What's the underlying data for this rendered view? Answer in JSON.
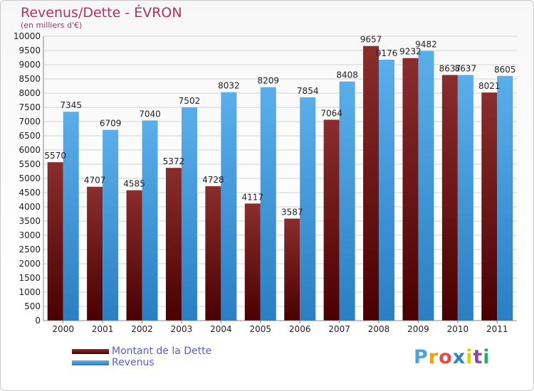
{
  "header": {
    "title": "Revenus/Dette - ÉVRON",
    "subtitle": "(en milliers d'€)"
  },
  "chart_data": {
    "type": "bar",
    "categories": [
      "2000",
      "2001",
      "2002",
      "2003",
      "2004",
      "2005",
      "2006",
      "2007",
      "2008",
      "2009",
      "2010",
      "2011"
    ],
    "series": [
      {
        "name": "Montant de la Dette",
        "values": [
          5570,
          4707,
          4585,
          5372,
          4728,
          4117,
          3587,
          7064,
          9657,
          9232,
          8637,
          8021
        ],
        "labels": [
          "5570",
          "4707",
          "4585",
          "5372",
          "4728",
          "4117",
          "3587",
          "7064",
          "9657",
          "9232",
          "8637",
          "8021"
        ],
        "color": "#7a1a1a"
      },
      {
        "name": "Revenus",
        "values": [
          7345,
          6709,
          7040,
          7502,
          8032,
          8209,
          7854,
          8408,
          9176,
          9482,
          8637,
          8605
        ],
        "labels": [
          "7345",
          "6709",
          "7040",
          "7502",
          "8032",
          "8209",
          "7854",
          "8408",
          "9176",
          "9482",
          "8637",
          "8605"
        ],
        "color": "#4fa3e3"
      }
    ],
    "ylim": [
      0,
      10000
    ],
    "ytick_step": 500,
    "grid": true,
    "legend_position": "bottom-left"
  },
  "logo": {
    "letters": [
      "P",
      "r",
      "o",
      "x",
      "i",
      "t",
      "i"
    ],
    "colors": [
      "#4aa3df",
      "#f39c12",
      "#e74c3c",
      "#2e86c1",
      "#f1c40f",
      "#8e44ad",
      "#27ae60"
    ]
  }
}
